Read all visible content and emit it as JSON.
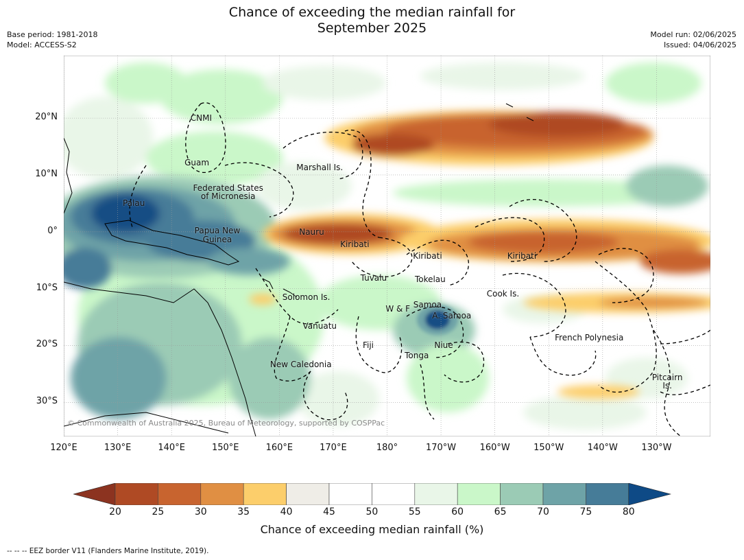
{
  "title_line1": "Chance of exceeding the median rainfall for",
  "title_line2": "September 2025",
  "meta_left": {
    "base_period": "Base period: 1981-2018",
    "model": "Model: ACCESS-S2"
  },
  "meta_right": {
    "model_run": "Model run: 02/06/2025",
    "issued": "Issued: 04/06/2025"
  },
  "map": {
    "lon_range": [
      120,
      240
    ],
    "lat_range": [
      -36,
      31
    ],
    "lat_ticks": [
      {
        "lat": 20,
        "label": "20°N"
      },
      {
        "lat": 10,
        "label": "10°N"
      },
      {
        "lat": 0,
        "label": "0°"
      },
      {
        "lat": -10,
        "label": "10°S"
      },
      {
        "lat": -20,
        "label": "20°S"
      },
      {
        "lat": -30,
        "label": "30°S"
      }
    ],
    "lon_ticks": [
      {
        "lon": 120,
        "label": "120°E"
      },
      {
        "lon": 130,
        "label": "130°E"
      },
      {
        "lon": 140,
        "label": "140°E"
      },
      {
        "lon": 150,
        "label": "150°E"
      },
      {
        "lon": 160,
        "label": "160°E"
      },
      {
        "lon": 170,
        "label": "170°E"
      },
      {
        "lon": 180,
        "label": "180°"
      },
      {
        "lon": 190,
        "label": "170°W"
      },
      {
        "lon": 200,
        "label": "160°W"
      },
      {
        "lon": 210,
        "label": "150°W"
      },
      {
        "lon": 220,
        "label": "140°W"
      },
      {
        "lon": 230,
        "label": "130°W"
      }
    ],
    "places": [
      {
        "name": "CNMI",
        "lon": 145.5,
        "lat": 20.0
      },
      {
        "name": "Guam",
        "lon": 144.7,
        "lat": 12.2
      },
      {
        "name": "Marshall Is.",
        "lon": 167.5,
        "lat": 11.3
      },
      {
        "name": "Federated States",
        "lon": 150.5,
        "lat": 7.7
      },
      {
        "name": "of Micronesia",
        "lon": 150.5,
        "lat": 6.2
      },
      {
        "name": "Palau",
        "lon": 133.0,
        "lat": 5.0
      },
      {
        "name": "Papua New",
        "lon": 148.5,
        "lat": 0.2
      },
      {
        "name": "Guinea",
        "lon": 148.5,
        "lat": -1.3
      },
      {
        "name": "Nauru",
        "lon": 166.0,
        "lat": 0.0
      },
      {
        "name": "Kiribati",
        "lon": 174.0,
        "lat": -2.2
      },
      {
        "name": "Kiribati",
        "lon": 187.5,
        "lat": -4.2
      },
      {
        "name": "Kiribati",
        "lon": 205.0,
        "lat": -4.2
      },
      {
        "name": "Tuvalu",
        "lon": 177.5,
        "lat": -8.1
      },
      {
        "name": "Tokelau",
        "lon": 188.0,
        "lat": -8.4
      },
      {
        "name": "Cook Is.",
        "lon": 201.5,
        "lat": -10.9
      },
      {
        "name": "Solomon Is.",
        "lon": 165.0,
        "lat": -11.5
      },
      {
        "name": "Samoa",
        "lon": 187.5,
        "lat": -12.8
      },
      {
        "name": "W & F",
        "lon": 182.0,
        "lat": -13.5
      },
      {
        "name": "A. Samoa",
        "lon": 192.0,
        "lat": -14.8
      },
      {
        "name": "Vanuatu",
        "lon": 167.5,
        "lat": -16.6
      },
      {
        "name": "French Polynesia",
        "lon": 217.5,
        "lat": -18.6
      },
      {
        "name": "Fiji",
        "lon": 176.5,
        "lat": -19.9
      },
      {
        "name": "Niue",
        "lon": 190.5,
        "lat": -19.9
      },
      {
        "name": "Tonga",
        "lon": 185.5,
        "lat": -21.8
      },
      {
        "name": "New Caledonia",
        "lon": 164.0,
        "lat": -23.3
      },
      {
        "name": "Pitcairn",
        "lon": 232.0,
        "lat": -25.6
      },
      {
        "name": "Is.",
        "lon": 232.0,
        "lat": -27.1
      }
    ],
    "copyright": "© Commonwealth of Australia 2025, Bureau of Meteorology, supported by COSPPac"
  },
  "colorbar": {
    "ticks": [
      "20",
      "25",
      "30",
      "35",
      "40",
      "45",
      "50",
      "55",
      "60",
      "65",
      "70",
      "75",
      "80"
    ],
    "colors": [
      "#af4a24",
      "#c8642f",
      "#e08f43",
      "#fcce6b",
      "#efede7",
      "#ffffff",
      "#ffffff",
      "#e9f6e8",
      "#caf7c9",
      "#9bcbb5",
      "#6ea3a7",
      "#467c98",
      "#174e84"
    ],
    "under_color": "#8c3320",
    "over_color": "#0e4a86",
    "label": "Chance of exceeding median rainfall (%)"
  },
  "eez_note": "--  --  -- EEZ border V11 (Flanders Marine Institute, 2019)."
}
